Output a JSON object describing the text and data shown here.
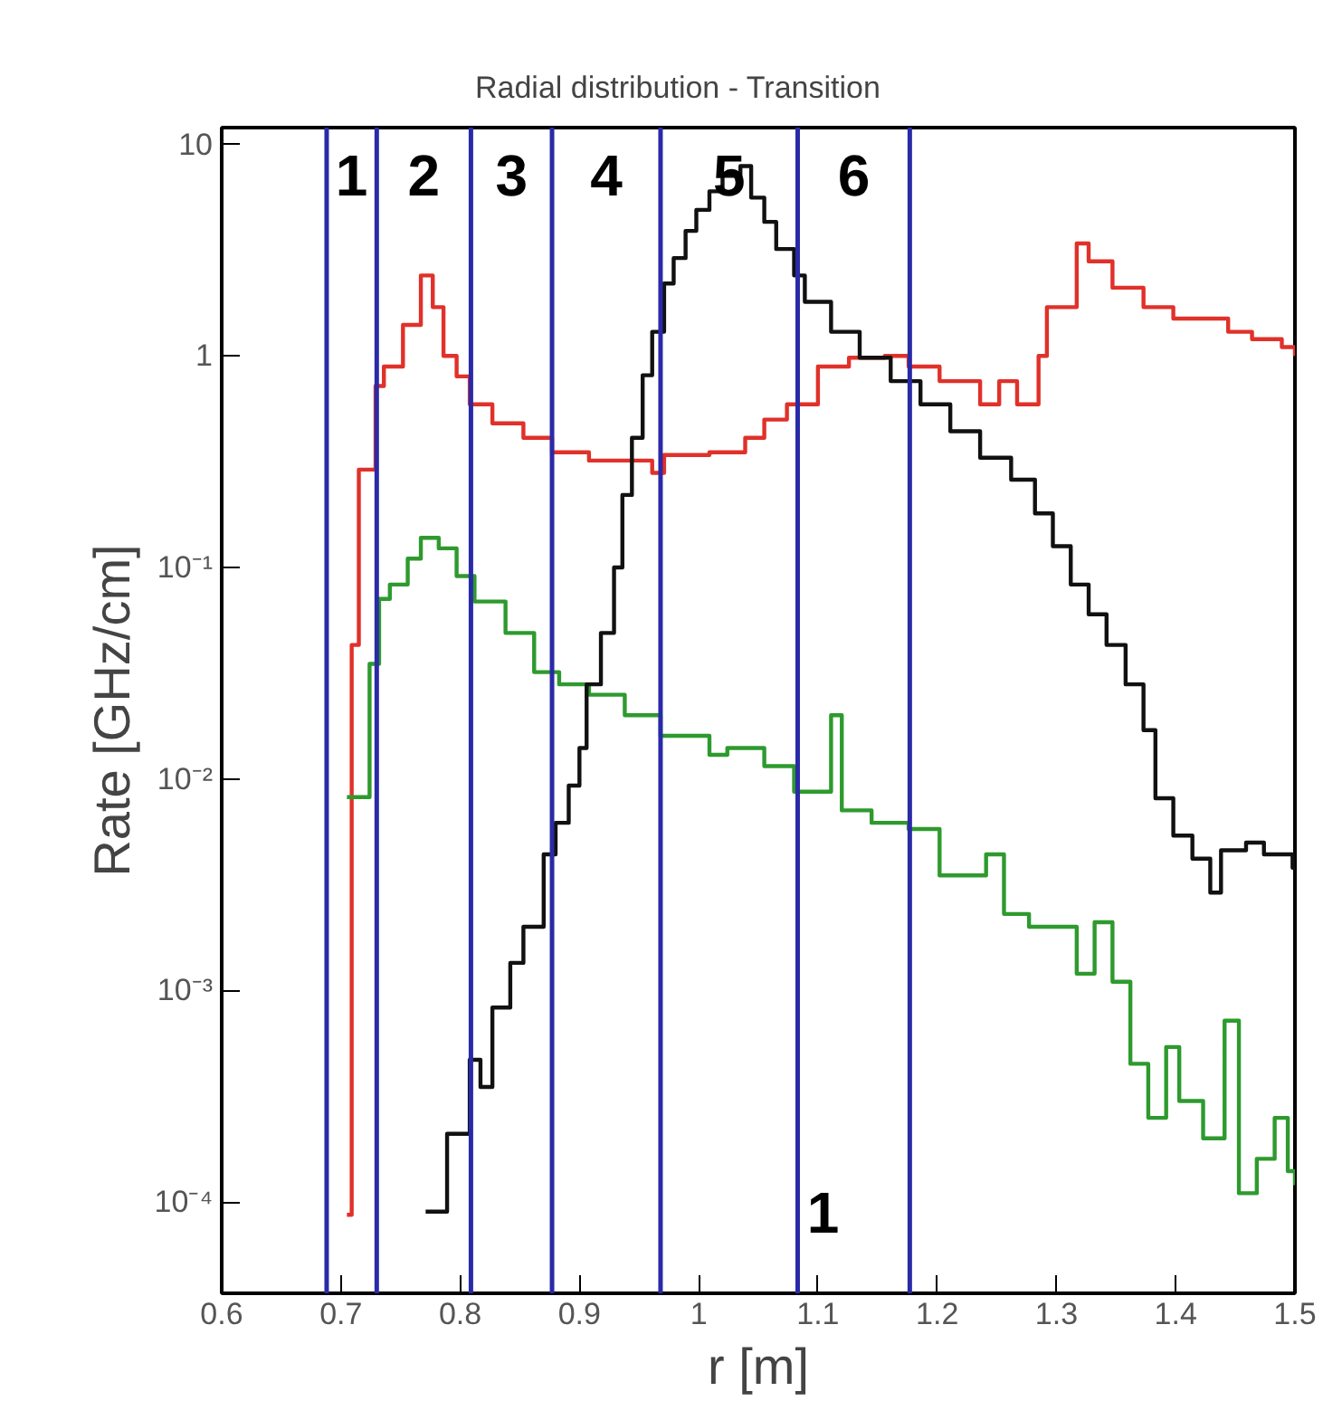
{
  "chart_data": {
    "type": "step",
    "title": "Radial distribution - Transition",
    "xlabel": "r [m]",
    "ylabel": "Rate [GHz/cm]",
    "log": "y",
    "grid": false,
    "marker": "none",
    "line_style": "solid",
    "xlim": [
      0.6,
      1.5
    ],
    "xticks": [
      0.6,
      0.7,
      0.8,
      0.9,
      1,
      1.1,
      1.2,
      1.3,
      1.4,
      1.5
    ],
    "ylim": [
      3.7e-05,
      12
    ],
    "yticks": [
      {
        "value": 0.0001,
        "label": "10⁻⁴"
      },
      {
        "value": 0.001,
        "label": "10⁻³"
      },
      {
        "value": 0.01,
        "label": "10⁻²"
      },
      {
        "value": 0.1,
        "label": "10⁻¹"
      },
      1,
      10
    ],
    "series": [
      {
        "color": "#e0312a",
        "x": [
          0.705,
          0.709,
          0.715,
          0.729,
          0.736,
          0.752,
          0.767,
          0.777,
          0.786,
          0.797,
          0.808,
          0.827,
          0.853,
          0.877,
          0.908,
          0.948,
          0.961,
          0.971,
          1.009,
          1.039,
          1.055,
          1.074,
          1.1,
          1.126,
          1.156,
          1.176,
          1.202,
          1.236,
          1.252,
          1.267,
          1.285,
          1.292,
          1.317,
          1.327,
          1.347,
          1.373,
          1.398,
          1.429,
          1.444,
          1.464,
          1.489,
          1.5
        ],
        "values": [
          8.7e-05,
          0.043,
          0.29,
          0.72,
          0.89,
          1.4,
          2.4,
          1.7,
          1.0,
          0.8,
          0.59,
          0.48,
          0.41,
          0.35,
          0.32,
          0.32,
          0.28,
          0.34,
          0.35,
          0.41,
          0.5,
          0.59,
          0.89,
          0.98,
          1.0,
          0.89,
          0.76,
          0.59,
          0.76,
          0.59,
          1.0,
          1.7,
          3.4,
          2.8,
          2.1,
          1.7,
          1.5,
          1.5,
          1.3,
          1.2,
          1.1,
          1.0
        ]
      },
      {
        "color": "#2e9a2e",
        "x": [
          0.705,
          0.724,
          0.732,
          0.741,
          0.756,
          0.767,
          0.782,
          0.797,
          0.812,
          0.838,
          0.862,
          0.883,
          0.908,
          0.938,
          0.968,
          1.009,
          1.024,
          1.055,
          1.08,
          1.111,
          1.12,
          1.145,
          1.176,
          1.202,
          1.241,
          1.256,
          1.277,
          1.317,
          1.332,
          1.347,
          1.362,
          1.377,
          1.392,
          1.403,
          1.423,
          1.441,
          1.453,
          1.468,
          1.483,
          1.494,
          1.5
        ],
        "values": [
          0.0082,
          0.035,
          0.071,
          0.083,
          0.11,
          0.138,
          0.123,
          0.091,
          0.069,
          0.049,
          0.032,
          0.028,
          0.025,
          0.02,
          0.016,
          0.013,
          0.014,
          0.0115,
          0.0087,
          0.02,
          0.0071,
          0.0062,
          0.0058,
          0.0035,
          0.0044,
          0.0023,
          0.002,
          0.0012,
          0.0021,
          0.0011,
          0.00045,
          0.00025,
          0.00054,
          0.0003,
          0.0002,
          0.00072,
          0.00011,
          0.00016,
          0.00025,
          0.00014,
          0.00012
        ]
      },
      {
        "color": "#111111",
        "x": [
          0.771,
          0.789,
          0.808,
          0.817,
          0.827,
          0.842,
          0.853,
          0.87,
          0.88,
          0.891,
          0.9,
          0.906,
          0.918,
          0.929,
          0.936,
          0.944,
          0.953,
          0.961,
          0.971,
          0.979,
          0.989,
          0.998,
          1.009,
          1.02,
          1.035,
          1.044,
          1.055,
          1.065,
          1.08,
          1.089,
          1.111,
          1.135,
          1.161,
          1.186,
          1.211,
          1.236,
          1.262,
          1.282,
          1.297,
          1.312,
          1.327,
          1.342,
          1.358,
          1.373,
          1.383,
          1.398,
          1.414,
          1.429,
          1.438,
          1.459,
          1.474,
          1.498,
          1.5
        ],
        "values": [
          9e-05,
          0.00021,
          0.00047,
          0.00035,
          0.00083,
          0.00135,
          0.002,
          0.0044,
          0.0062,
          0.0093,
          0.014,
          0.028,
          0.049,
          0.1,
          0.22,
          0.41,
          0.81,
          1.3,
          2.2,
          2.9,
          3.9,
          4.9,
          6.0,
          7.1,
          7.9,
          5.6,
          4.3,
          3.2,
          2.4,
          1.8,
          1.3,
          0.98,
          0.76,
          0.59,
          0.44,
          0.33,
          0.26,
          0.18,
          0.126,
          0.083,
          0.06,
          0.043,
          0.028,
          0.017,
          0.0081,
          0.0054,
          0.0042,
          0.0029,
          0.0046,
          0.005,
          0.0044,
          0.0038,
          0.0038
        ]
      }
    ],
    "ref_lines": [
      {
        "axis": "x",
        "value": 0.688,
        "color": "#2a2aa8"
      },
      {
        "axis": "x",
        "value": 0.73,
        "color": "#2a2aa8"
      },
      {
        "axis": "x",
        "value": 0.809,
        "color": "#2a2aa8"
      },
      {
        "axis": "x",
        "value": 0.877,
        "color": "#2a2aa8"
      },
      {
        "axis": "x",
        "value": 0.968,
        "color": "#2a2aa8"
      },
      {
        "axis": "x",
        "value": 1.083,
        "color": "#2a2aa8"
      },
      {
        "axis": "x",
        "value": 1.177,
        "color": "#2a2aa8"
      }
    ],
    "annotations": [
      "1",
      "2",
      "3",
      "4",
      "5",
      "6",
      "1"
    ]
  }
}
